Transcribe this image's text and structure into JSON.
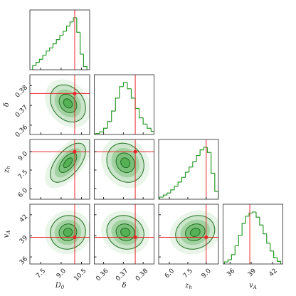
{
  "chart_data": {
    "type": "corner",
    "color": "#2a9a2a",
    "truth_color": "#e8262a",
    "hist_ylim": [
      0,
      115
    ],
    "parameters": [
      {
        "symbol": "D",
        "subscript": "0",
        "lim": [
          6.7,
          11.1
        ],
        "ticks": [
          7.5,
          {
            "value": 9,
            "label": "9.0"
          },
          10.5
        ],
        "truth": 10,
        "mean": 9.5,
        "std": 0.65,
        "bins": [
          6.9,
          7.15,
          7.4,
          7.65,
          7.9,
          8.15,
          8.4,
          8.65,
          8.9,
          9.15,
          9.4,
          9.65,
          9.9,
          10.15,
          10.4,
          10.65,
          10.9
        ],
        "counts": [
          8,
          14,
          20,
          28,
          36,
          42,
          50,
          58,
          66,
          74,
          84,
          92,
          100,
          72,
          30,
          6
        ]
      },
      {
        "symbol": "δ",
        "lim": [
          0.3553,
          0.3855
        ],
        "ticks": [
          0.36,
          0.37,
          0.38
        ],
        "truth": 0.376,
        "mean": 0.371,
        "std": 0.0047,
        "bins": [
          0.356,
          0.358,
          0.36,
          0.362,
          0.364,
          0.366,
          0.368,
          0.37,
          0.372,
          0.374,
          0.376,
          0.378,
          0.38,
          0.382,
          0.384,
          0.386,
          0.388
        ],
        "counts": [
          2,
          5,
          12,
          25,
          45,
          70,
          92,
          100,
          88,
          70,
          50,
          32,
          20,
          12,
          6,
          3
        ]
      },
      {
        "symbol": "z",
        "subscript": "h",
        "lim": [
          5.12,
          10.0
        ],
        "ticks": [
          {
            "value": 6,
            "label": "6.0"
          },
          7.5,
          {
            "value": 9,
            "label": "9.0"
          }
        ],
        "truth": 9,
        "mean": 8.1,
        "std": 0.8,
        "bins": [
          5.2,
          5.5,
          5.8,
          6.1,
          6.4,
          6.7,
          7.0,
          7.3,
          7.6,
          7.9,
          8.2,
          8.5,
          8.8,
          9.1,
          9.4,
          9.7,
          10.0
        ],
        "counts": [
          4,
          8,
          12,
          18,
          25,
          33,
          42,
          52,
          62,
          72,
          84,
          95,
          100,
          90,
          50,
          15
        ]
      },
      {
        "symbol": "v",
        "subscript": "A",
        "lim": [
          35,
          43.5
        ],
        "ticks": [
          36,
          39,
          42
        ],
        "truth": 38.8,
        "mean": 39.5,
        "std": 1.2,
        "bins": [
          35.2,
          35.7,
          36.2,
          36.7,
          37.2,
          37.7,
          38.2,
          38.7,
          39.2,
          39.7,
          40.2,
          40.7,
          41.2,
          41.7,
          42.2,
          42.7,
          43.2
        ],
        "counts": [
          4,
          8,
          18,
          35,
          55,
          78,
          92,
          98,
          100,
          90,
          75,
          58,
          40,
          25,
          12,
          5
        ]
      }
    ],
    "correlations": [
      [
        -0.25
      ],
      [
        0.6,
        -0.15
      ],
      [
        0.05,
        -0.1,
        0.15
      ]
    ]
  }
}
